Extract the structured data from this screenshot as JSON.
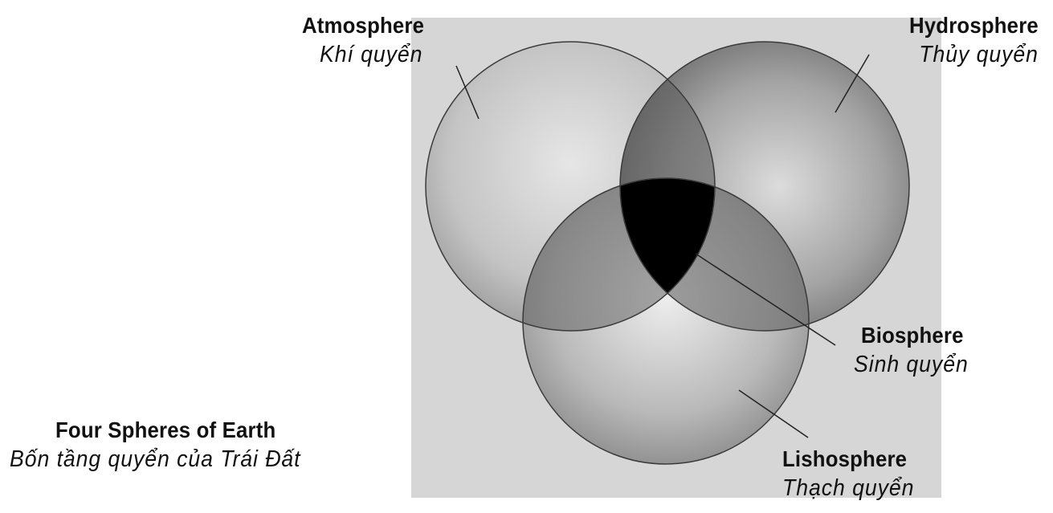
{
  "title": {
    "en": "Four Spheres of Earth",
    "vi": "Bốn tầng quyển của Trái Đất"
  },
  "spheres": [
    {
      "id": "atmosphere",
      "en": "Atmosphere",
      "vi": "Khí quyển"
    },
    {
      "id": "hydrosphere",
      "en": "Hydrosphere",
      "vi": "Thủy quyển"
    },
    {
      "id": "biosphere",
      "en": "Biosphere",
      "vi": "Sinh quyển"
    },
    {
      "id": "lithosphere",
      "en": "Lishosphere",
      "vi": "Thạch quyển"
    }
  ],
  "colors": {
    "background_panel": "#d6d6d6",
    "circle_edge": "#3a3a3a",
    "biosphere_fill": "#000000",
    "label_text": "#111111"
  }
}
